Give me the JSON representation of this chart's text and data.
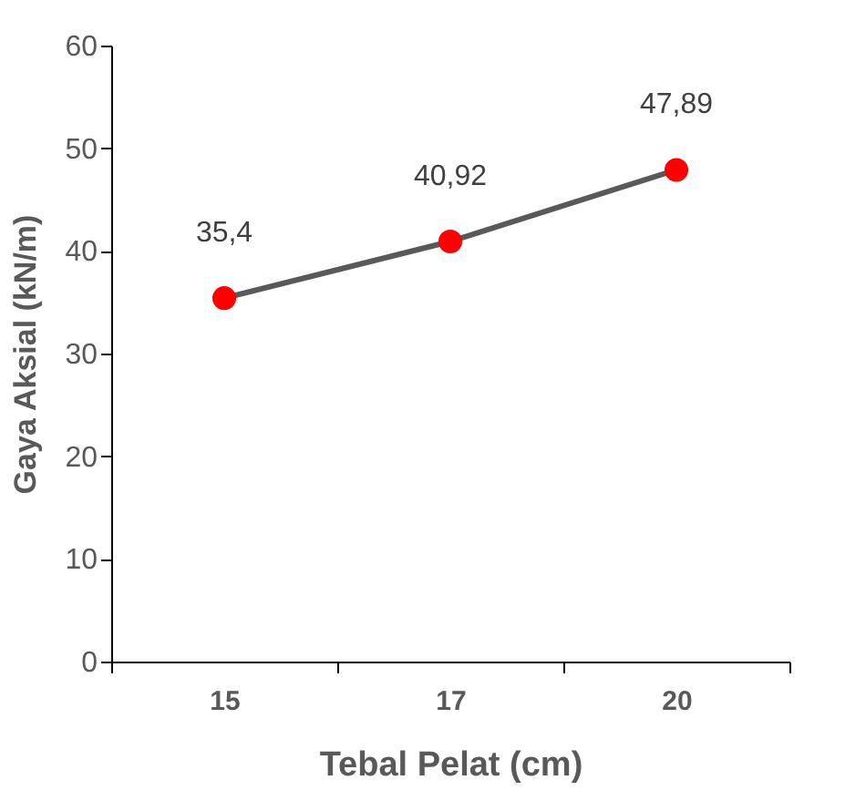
{
  "chart_data": {
    "type": "line",
    "xlabel": "Tebal Pelat (cm)",
    "ylabel": "Gaya Aksial (kN/m)",
    "categories": [
      "15",
      "17",
      "20"
    ],
    "series": [
      {
        "color": "#595959",
        "values": [
          35.4,
          40.92,
          47.89
        ],
        "value_labels": [
          "35,4",
          "40,92",
          "47,89"
        ],
        "colors": [
          "#ff0000",
          "#ff0000",
          "#ff0000"
        ]
      }
    ],
    "ylim": [
      0,
      60
    ],
    "yticks": [
      0,
      10,
      20,
      30,
      40,
      50,
      60
    ],
    "marker": "circle",
    "line_style": "solid",
    "grid": false
  }
}
